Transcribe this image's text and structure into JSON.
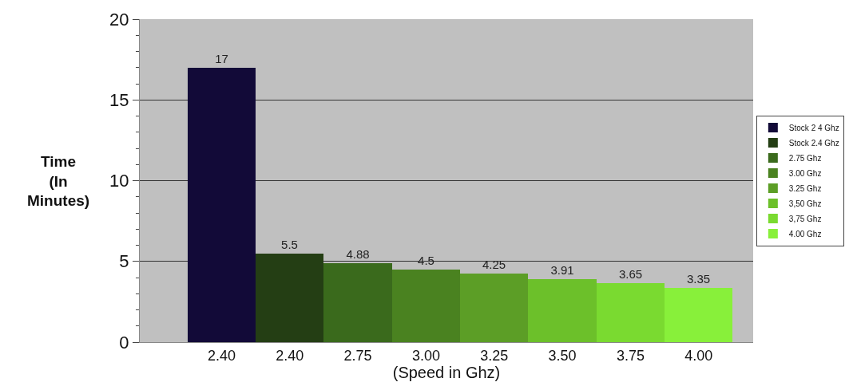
{
  "chart_data": {
    "type": "bar",
    "xlabel": "(Speed in Ghz)",
    "ylabel": "Time\n(In\nMinutes)",
    "categories": [
      "2.40",
      "2.40",
      "2.75",
      "3.00",
      "3.25",
      "3.50",
      "3.75",
      "4.00"
    ],
    "series": [
      {
        "name": "Stock 2 4 Ghz",
        "color": "#120a38",
        "values": [
          17,
          null,
          null,
          null,
          null,
          null,
          null,
          null
        ]
      },
      {
        "name": "Stock 2.4 Ghz",
        "color": "#243e14",
        "values": [
          null,
          5.5,
          null,
          null,
          null,
          null,
          null,
          null
        ]
      },
      {
        "name": "2.75 Ghz",
        "color": "#3a6a1c",
        "values": [
          null,
          null,
          4.88,
          null,
          null,
          null,
          null,
          null
        ]
      },
      {
        "name": "3.00 Ghz",
        "color": "#4a8220",
        "values": [
          null,
          null,
          null,
          4.5,
          null,
          null,
          null,
          null
        ]
      },
      {
        "name": "3.25 Ghz",
        "color": "#5c9e26",
        "values": [
          null,
          null,
          null,
          null,
          4.25,
          null,
          null,
          null
        ]
      },
      {
        "name": "3,50 Ghz",
        "color": "#6cc02a",
        "values": [
          null,
          null,
          null,
          null,
          null,
          3.91,
          null,
          null
        ]
      },
      {
        "name": "3,75 Ghz",
        "color": "#7ada30",
        "values": [
          null,
          null,
          null,
          null,
          null,
          null,
          3.65,
          null
        ]
      },
      {
        "name": "4.00 Ghz",
        "color": "#88f03a",
        "values": [
          null,
          null,
          null,
          null,
          null,
          null,
          null,
          3.35
        ]
      }
    ],
    "ylim": [
      0,
      20
    ],
    "yticks": [
      0,
      5,
      10,
      15,
      20
    ],
    "grid": "y",
    "legend": "right",
    "data_labels": true
  }
}
